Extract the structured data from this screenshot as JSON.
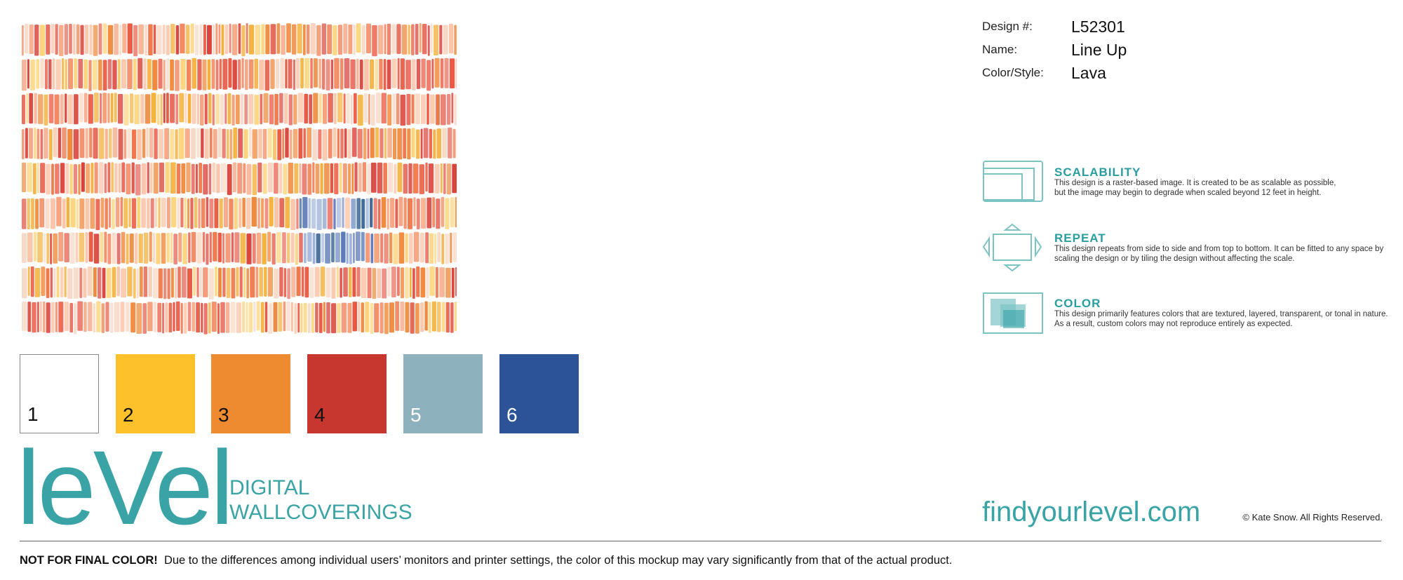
{
  "design_info": [
    {
      "label": "Design #:",
      "value": "L52301"
    },
    {
      "label": "Name:",
      "value": "Line Up"
    },
    {
      "label": "Color/Style:",
      "value": "Lava"
    }
  ],
  "swatches": [
    {
      "label": "1",
      "color": "#ffffff"
    },
    {
      "label": "2",
      "color": "#fdc12c"
    },
    {
      "label": "3",
      "color": "#ee8a2f"
    },
    {
      "label": "4",
      "color": "#c8372f"
    },
    {
      "label": "5",
      "color": "#8db2bd"
    },
    {
      "label": "6",
      "color": "#2d5397"
    }
  ],
  "logo": {
    "brand": "leVel",
    "line1": "DIGITAL",
    "line2": "WALLCOVERINGS"
  },
  "features": [
    {
      "title": "SCALABILITY",
      "lines": [
        "This design is a raster-based image. It is created to be as scalable as possible,",
        "but the image may begin to degrade when scaled beyond 12 feet in height."
      ]
    },
    {
      "title": "REPEAT",
      "lines": [
        "This design repeats from side to side and from top to bottom. It can be fitted to any space by",
        "scaling the design or by tiling the design without affecting the scale."
      ]
    },
    {
      "title": "COLOR",
      "lines": [
        "This design primarily features colors that are textured, layered, transparent, or tonal in nature.",
        "As a result, custom colors may not reproduce entirely as expected."
      ]
    }
  ],
  "website": "findyourlevel.com",
  "copyright": "© Kate Snow. All Rights Reserved.",
  "footer": {
    "warning": "NOT FOR FINAL COLOR!",
    "text": "Due to the differences among individual users’ monitors and printer settings, the color of this mockup may vary significantly from that of the actual product."
  }
}
